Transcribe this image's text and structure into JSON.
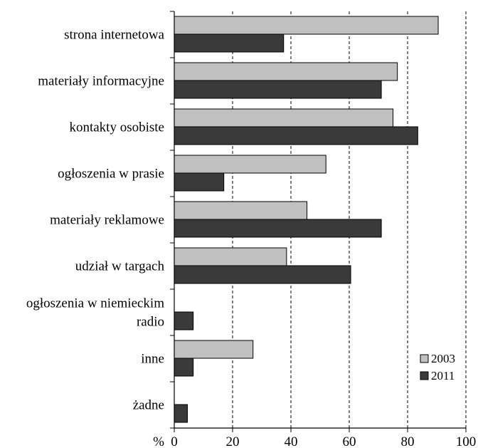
{
  "chart_data": {
    "type": "bar",
    "orientation": "horizontal",
    "categories": [
      "strona internetowa",
      "materiały informacyjne",
      "kontakty osobiste",
      "ogłoszenia w prasie",
      "materiały reklamowe",
      "udział w targach",
      "ogłoszenia w niemieckim radio",
      "inne",
      "żadne"
    ],
    "category_lines": [
      [
        "strona internetowa"
      ],
      [
        "materiały informacyjne"
      ],
      [
        "kontakty osobiste"
      ],
      [
        "ogłoszenia w prasie"
      ],
      [
        "materiały reklamowe"
      ],
      [
        "udział w targach"
      ],
      [
        "ogłoszenia w niemieckim",
        "radio"
      ],
      [
        "inne"
      ],
      [
        "żadne"
      ]
    ],
    "series": [
      {
        "name": "2003",
        "color": "#c0c0c0",
        "values": [
          90.5,
          76.5,
          75,
          52,
          45.5,
          38.5,
          0,
          27,
          0
        ]
      },
      {
        "name": "2011",
        "color": "#3a3a3a",
        "values": [
          37.5,
          71,
          83.5,
          17,
          71,
          60.5,
          6.5,
          6.5,
          4.5
        ]
      }
    ],
    "x_unit_label": "%",
    "xlim": [
      0,
      100
    ],
    "xticks": [
      0,
      20,
      40,
      60,
      80,
      100
    ],
    "grid": "vertical dashed",
    "legend_position": "bottom-right",
    "title": "",
    "xlabel": "",
    "ylabel": ""
  }
}
